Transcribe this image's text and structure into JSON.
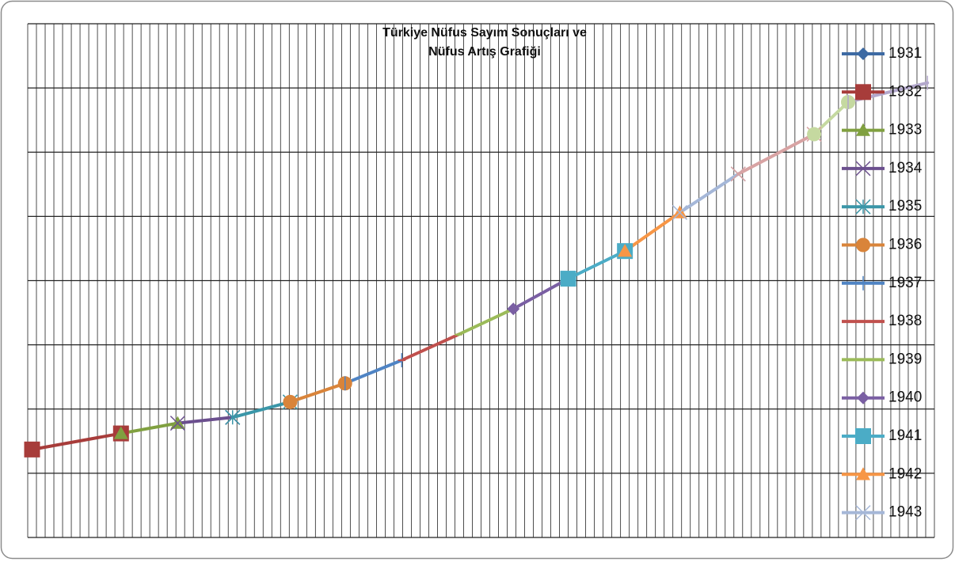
{
  "chart_data": {
    "type": "line",
    "title": [
      "Türkiye Nüfus Sayım Sonuçları ve",
      "Nüfus Artış Grafiği"
    ],
    "x": [
      0.5,
      10.7,
      17.2,
      23.5,
      30.1,
      36.4,
      42.9,
      49.4,
      55.7,
      62,
      68.5,
      74.8,
      81.5,
      90.2,
      94.1,
      103.2
    ],
    "xlim": [
      0,
      104
    ],
    "xticks": [
      0,
      1,
      2,
      3,
      4,
      5,
      6,
      7,
      8,
      9,
      10,
      11,
      12,
      13,
      14,
      15,
      16,
      17,
      18,
      19,
      20,
      21,
      22,
      23,
      24,
      25,
      26,
      27,
      28,
      29,
      30,
      31,
      32,
      33,
      34,
      35,
      36,
      37,
      38,
      39,
      40,
      41,
      42,
      43,
      44,
      45,
      46,
      47,
      48,
      49,
      50,
      51,
      52,
      53,
      54,
      55,
      56,
      57,
      58,
      59,
      60,
      61,
      62,
      63,
      64,
      65,
      66,
      67,
      68,
      69,
      70,
      71,
      72,
      73,
      74,
      75,
      76,
      77,
      78,
      79,
      80,
      81,
      82,
      83,
      84,
      85,
      86,
      87,
      88,
      89,
      90,
      91,
      92,
      93,
      94,
      95,
      96,
      97,
      98,
      99,
      100,
      101,
      102,
      103,
      104
    ],
    "ylim": [
      0,
      8
    ],
    "yticks": [
      0,
      1,
      2,
      3,
      4,
      5,
      6,
      7,
      8
    ],
    "grid": true,
    "legend": "right",
    "series": [
      {
        "name": "1931",
        "color": "#3d6aa3",
        "marker": "diamond",
        "values": [
          1.37,
          null,
          null,
          null,
          null,
          null,
          null,
          null,
          null,
          null,
          null,
          null,
          null,
          null,
          null,
          null
        ]
      },
      {
        "name": "1932",
        "color": "#a73c3a",
        "marker": "square",
        "values": [
          1.37,
          1.62,
          null,
          null,
          null,
          null,
          null,
          null,
          null,
          null,
          null,
          null,
          null,
          null,
          null,
          null
        ]
      },
      {
        "name": "1933",
        "color": "#80a040",
        "marker": "triangle",
        "values": [
          null,
          1.62,
          1.78,
          null,
          null,
          null,
          null,
          null,
          null,
          null,
          null,
          null,
          null,
          null,
          null,
          null
        ]
      },
      {
        "name": "1934",
        "color": "#6b4f8e",
        "marker": "x",
        "values": [
          null,
          null,
          1.78,
          1.87,
          null,
          null,
          null,
          null,
          null,
          null,
          null,
          null,
          null,
          null,
          null,
          null
        ]
      },
      {
        "name": "1935",
        "color": "#3a96a8",
        "marker": "star",
        "values": [
          null,
          null,
          null,
          1.87,
          2.11,
          null,
          null,
          null,
          null,
          null,
          null,
          null,
          null,
          null,
          null,
          null
        ]
      },
      {
        "name": "1936",
        "color": "#d9843a",
        "marker": "circle",
        "values": [
          null,
          null,
          null,
          null,
          2.11,
          2.4,
          null,
          null,
          null,
          null,
          null,
          null,
          null,
          null,
          null,
          null
        ]
      },
      {
        "name": "1937",
        "color": "#4f84c4",
        "marker": "plus",
        "values": [
          null,
          null,
          null,
          null,
          null,
          2.4,
          2.76,
          null,
          null,
          null,
          null,
          null,
          null,
          null,
          null,
          null
        ]
      },
      {
        "name": "1938",
        "color": "#c0504d",
        "marker": "dash",
        "values": [
          null,
          null,
          null,
          null,
          null,
          null,
          2.76,
          3.16,
          null,
          null,
          null,
          null,
          null,
          null,
          null,
          null
        ]
      },
      {
        "name": "1939",
        "color": "#9bbb59",
        "marker": "dash",
        "values": [
          null,
          null,
          null,
          null,
          null,
          null,
          null,
          3.16,
          3.56,
          null,
          null,
          null,
          null,
          null,
          null,
          null
        ]
      },
      {
        "name": "1940",
        "color": "#7a5fa3",
        "marker": "diamond",
        "values": [
          null,
          null,
          null,
          null,
          null,
          null,
          null,
          null,
          3.56,
          4.03,
          null,
          null,
          null,
          null,
          null,
          null
        ]
      },
      {
        "name": "1941",
        "color": "#4bacc6",
        "marker": "square",
        "values": [
          null,
          null,
          null,
          null,
          null,
          null,
          null,
          null,
          null,
          4.03,
          4.46,
          null,
          null,
          null,
          null,
          null
        ]
      },
      {
        "name": "1942",
        "color": "#f79646",
        "marker": "triangle",
        "values": [
          null,
          null,
          null,
          null,
          null,
          null,
          null,
          null,
          null,
          null,
          4.46,
          5.06,
          null,
          null,
          null,
          null
        ]
      },
      {
        "name": "1943",
        "color": "#a5b7d8",
        "marker": "x",
        "values": [
          null,
          null,
          null,
          null,
          null,
          null,
          null,
          null,
          null,
          null,
          null,
          5.06,
          5.66,
          null,
          null,
          null
        ]
      },
      {
        "name": null,
        "color": "#d8a3a3",
        "marker": "x",
        "values": [
          null,
          null,
          null,
          null,
          null,
          null,
          null,
          null,
          null,
          null,
          null,
          null,
          5.66,
          6.28,
          null,
          null
        ]
      },
      {
        "name": null,
        "color": "#c5d9a0",
        "marker": "circle",
        "values": [
          null,
          null,
          null,
          null,
          null,
          null,
          null,
          null,
          null,
          null,
          null,
          null,
          null,
          6.28,
          6.78,
          null
        ]
      },
      {
        "name": null,
        "color": "#b3a8cc",
        "marker": "plus",
        "values": [
          null,
          null,
          null,
          null,
          null,
          null,
          null,
          null,
          null,
          null,
          null,
          null,
          null,
          null,
          6.78,
          7.08
        ]
      }
    ]
  }
}
